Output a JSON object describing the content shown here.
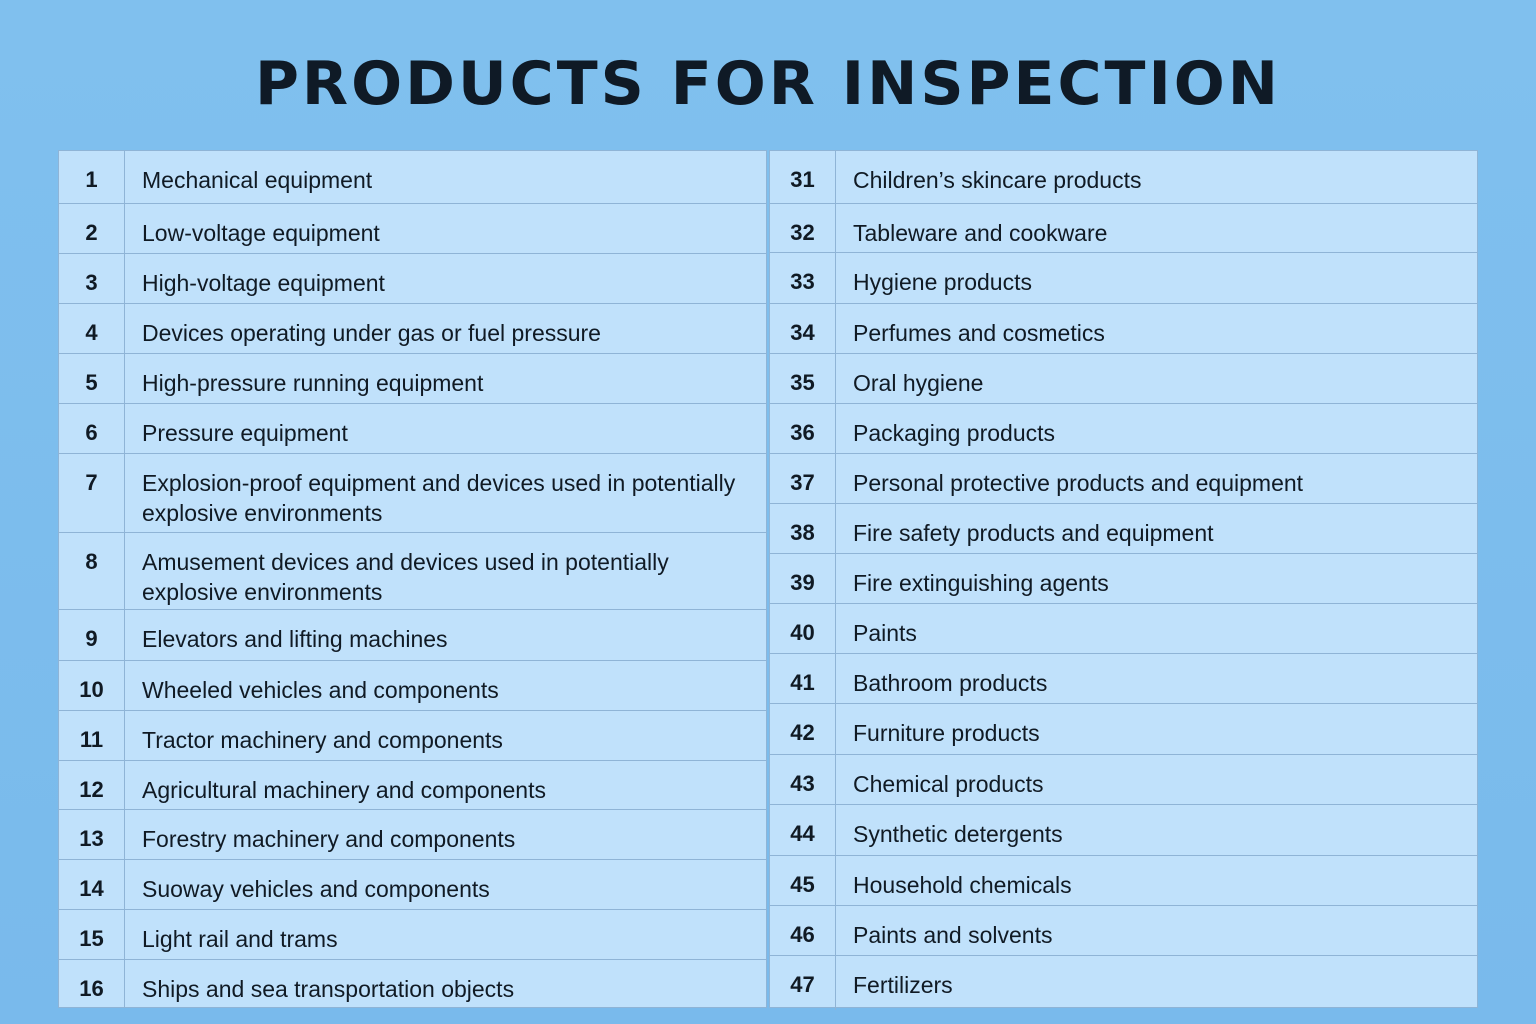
{
  "title": "PRODUCTS FOR INSPECTION",
  "left_column": [
    {
      "num": "1",
      "label": "Mechanical equipment"
    },
    {
      "num": "2",
      "label": "Low-voltage equipment"
    },
    {
      "num": "3",
      "label": "High-voltage equipment"
    },
    {
      "num": "4",
      "label": "Devices operating under gas or fuel pressure"
    },
    {
      "num": "5",
      "label": "High-pressure running equipment"
    },
    {
      "num": "6",
      "label": "Pressure equipment"
    },
    {
      "num": "7",
      "label": "Explosion-proof equipment and devices used in potentially explosive environments"
    },
    {
      "num": "8",
      "label": "Amusement devices and devices used in potentially explosive environments"
    },
    {
      "num": "9",
      "label": "Elevators and lifting machines"
    },
    {
      "num": "10",
      "label": "Wheeled vehicles and components"
    },
    {
      "num": "11",
      "label": "Tractor machinery and components"
    },
    {
      "num": "12",
      "label": "Agricultural machinery and components"
    },
    {
      "num": "13",
      "label": "Forestry machinery and components"
    },
    {
      "num": "14",
      "label": "Suoway vehicles and components"
    },
    {
      "num": "15",
      "label": "Light rail and trams"
    },
    {
      "num": "16",
      "label": "Ships and sea transportation objects"
    }
  ],
  "right_column": [
    {
      "num": "31",
      "label": "Children’s skincare products"
    },
    {
      "num": "32",
      "label": "Tableware and cookware"
    },
    {
      "num": "33",
      "label": "Hygiene products"
    },
    {
      "num": "34",
      "label": "Perfumes and cosmetics"
    },
    {
      "num": "35",
      "label": "Oral hygiene"
    },
    {
      "num": "36",
      "label": "Packaging products"
    },
    {
      "num": "37",
      "label": "Personal protective products and equipment"
    },
    {
      "num": "38",
      "label": "Fire safety products and equipment"
    },
    {
      "num": "39",
      "label": "Fire extinguishing agents"
    },
    {
      "num": "40",
      "label": "Paints"
    },
    {
      "num": "41",
      "label": "Bathroom products"
    },
    {
      "num": "42",
      "label": "Furniture products"
    },
    {
      "num": "43",
      "label": "Chemical products"
    },
    {
      "num": "44",
      "label": "Synthetic detergents"
    },
    {
      "num": "45",
      "label": "Household chemicals"
    },
    {
      "num": "46",
      "label": "Paints and solvents"
    },
    {
      "num": "47",
      "label": "Fertilizers"
    }
  ]
}
